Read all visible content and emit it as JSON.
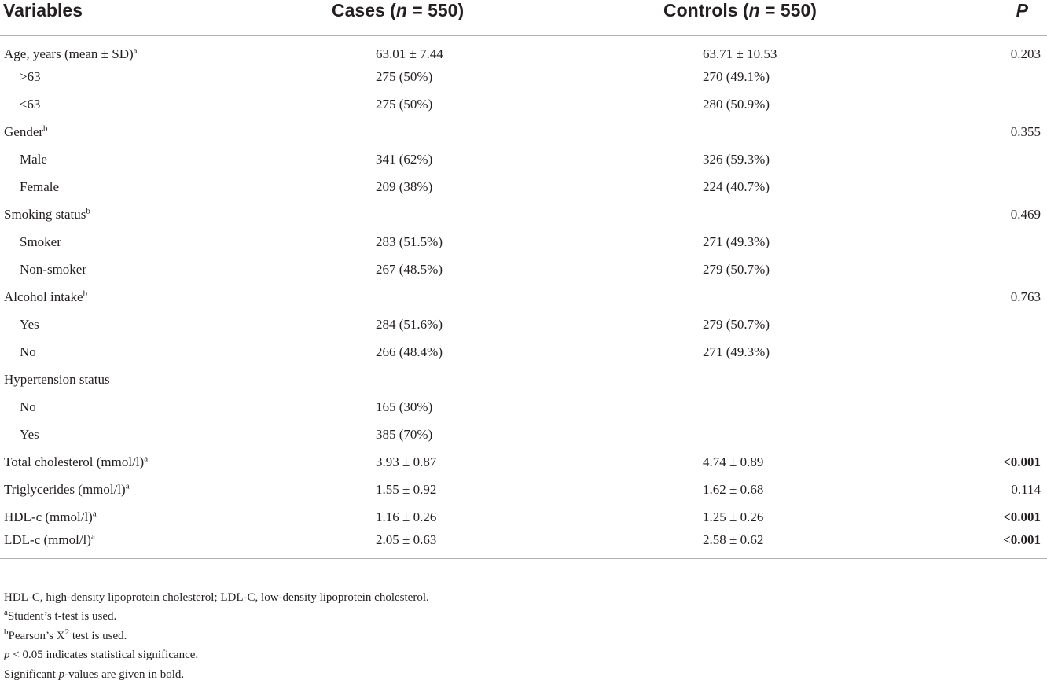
{
  "header": {
    "variables": "Variables",
    "cases_prefix": "Cases (",
    "cases_n": "n",
    "cases_suffix": " = 550)",
    "controls_prefix": "Controls (",
    "controls_n": "n",
    "controls_suffix": " = 550)",
    "p": "P"
  },
  "rows": [
    {
      "label": "Age, years (mean ± SD)",
      "sup": "a",
      "indent": false,
      "cases": "63.01 ± 7.44",
      "controls": "63.71 ± 10.53",
      "p": "0.203",
      "bold": false
    },
    {
      "label": ">63",
      "sup": "",
      "indent": true,
      "cases": "275 (50%)",
      "controls": "270 (49.1%)",
      "p": "",
      "bold": false
    },
    {
      "label": "≤63",
      "sup": "",
      "indent": true,
      "cases": "275 (50%)",
      "controls": "280 (50.9%)",
      "p": "",
      "bold": false
    },
    {
      "label": "Gender",
      "sup": "b",
      "indent": false,
      "cases": "",
      "controls": "",
      "p": "0.355",
      "bold": false
    },
    {
      "label": "Male",
      "sup": "",
      "indent": true,
      "cases": "341 (62%)",
      "controls": "326 (59.3%)",
      "p": "",
      "bold": false
    },
    {
      "label": "Female",
      "sup": "",
      "indent": true,
      "cases": "209 (38%)",
      "controls": "224 (40.7%)",
      "p": "",
      "bold": false
    },
    {
      "label": "Smoking status",
      "sup": "b",
      "indent": false,
      "cases": "",
      "controls": "",
      "p": "0.469",
      "bold": false
    },
    {
      "label": "Smoker",
      "sup": "",
      "indent": true,
      "cases": "283 (51.5%)",
      "controls": "271 (49.3%)",
      "p": "",
      "bold": false
    },
    {
      "label": "Non-smoker",
      "sup": "",
      "indent": true,
      "cases": "267 (48.5%)",
      "controls": "279 (50.7%)",
      "p": "",
      "bold": false
    },
    {
      "label": "Alcohol intake",
      "sup": "b",
      "indent": false,
      "cases": "",
      "controls": "",
      "p": "0.763",
      "bold": false
    },
    {
      "label": "Yes",
      "sup": "",
      "indent": true,
      "cases": "284 (51.6%)",
      "controls": "279 (50.7%)",
      "p": "",
      "bold": false
    },
    {
      "label": "No",
      "sup": "",
      "indent": true,
      "cases": "266 (48.4%)",
      "controls": "271 (49.3%)",
      "p": "",
      "bold": false
    },
    {
      "label": "Hypertension status",
      "sup": "",
      "indent": false,
      "cases": "",
      "controls": "",
      "p": "",
      "bold": false
    },
    {
      "label": "No",
      "sup": "",
      "indent": true,
      "cases": "165 (30%)",
      "controls": "",
      "p": "",
      "bold": false
    },
    {
      "label": "Yes",
      "sup": "",
      "indent": true,
      "cases": "385 (70%)",
      "controls": "",
      "p": "",
      "bold": false
    },
    {
      "label": "Total cholesterol (mmol/l)",
      "sup": "a",
      "indent": false,
      "cases": "3.93 ± 0.87",
      "controls": "4.74 ± 0.89",
      "p": "<0.001",
      "bold": true
    },
    {
      "label": "Triglycerides (mmol/l)",
      "sup": "a",
      "indent": false,
      "cases": "1.55 ± 0.92",
      "controls": "1.62 ± 0.68",
      "p": "0.114",
      "bold": false
    },
    {
      "label": "HDL-c (mmol/l)",
      "sup": "a",
      "indent": false,
      "cases": "1.16 ± 0.26",
      "controls": "1.25 ± 0.26",
      "p": "<0.001",
      "bold": true
    },
    {
      "label": "LDL-c (mmol/l)",
      "sup": "a",
      "indent": false,
      "cases": "2.05 ± 0.63",
      "controls": "2.58 ± 0.62",
      "p": "<0.001",
      "bold": true
    }
  ],
  "footnotes": {
    "abbrev": "HDL-C, high-density lipoprotein cholesterol; LDL-C, low-density lipoprotein cholesterol.",
    "a_mark": "a",
    "a_text": "Student’s t-test is used.",
    "b_mark": "b",
    "b_text_1": "Pearson’s X",
    "b_sup": "2",
    "b_text_2": " test is used.",
    "p_var": "p",
    "p_text": " < 0.05 indicates statistical significance.",
    "sig_text_1": "Significant ",
    "sig_var": "p",
    "sig_text_2": "-values are given in bold."
  }
}
